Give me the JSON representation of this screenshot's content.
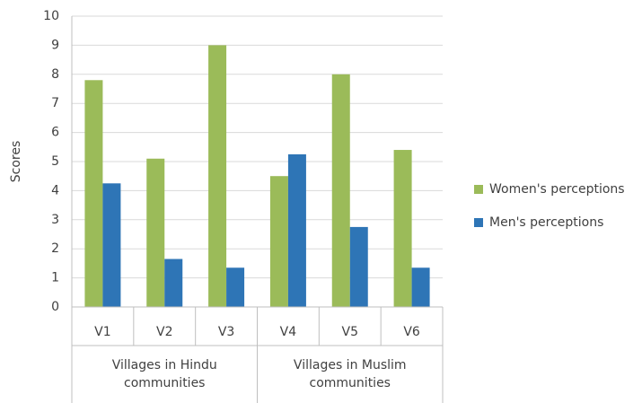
{
  "chart_data": {
    "type": "bar",
    "y_label": "Scores",
    "category_groups": [
      {
        "name": "Villages in Hindu communities",
        "categories": [
          "V1",
          "V2",
          "V3"
        ]
      },
      {
        "name": "Villages in Muslim communities",
        "categories": [
          "V4",
          "V5",
          "V6"
        ]
      }
    ],
    "series": [
      {
        "name": "Women's perceptions",
        "color": "#9bbb59",
        "values": [
          7.8,
          5.1,
          9.0,
          4.5,
          8.0,
          5.4
        ]
      },
      {
        "name": "Men's perceptions",
        "color": "#2e75b6",
        "values": [
          4.25,
          1.65,
          1.35,
          5.25,
          2.75,
          1.35
        ]
      }
    ],
    "ylim": [
      0,
      10
    ],
    "yticks": [
      0,
      1,
      2,
      3,
      4,
      5,
      6,
      7,
      8,
      9,
      10
    ],
    "grid": true,
    "legend": "right"
  }
}
